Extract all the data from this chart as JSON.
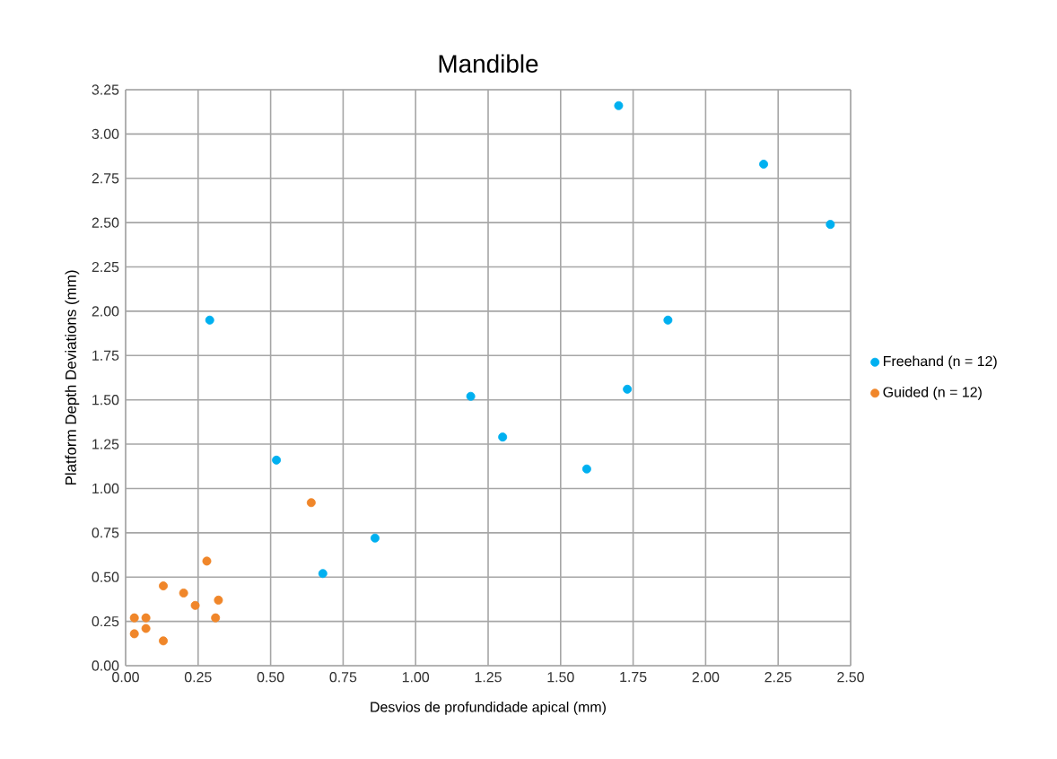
{
  "chart_data": {
    "type": "scatter",
    "title": "Mandible",
    "xlabel": "Desvios de profundidade apical (mm)",
    "ylabel": "Platform Depth Deviations (mm)",
    "xlim": [
      0,
      2.5
    ],
    "ylim": [
      0,
      3.25
    ],
    "xticks": [
      {
        "value": 0,
        "label": "0.00"
      },
      {
        "value": 0.25,
        "label": "0.25"
      },
      {
        "value": 0.5,
        "label": "0.50"
      },
      {
        "value": 0.75,
        "label": "0.75"
      },
      {
        "value": 1,
        "label": "1.00"
      },
      {
        "value": 1.25,
        "label": "1.25"
      },
      {
        "value": 1.5,
        "label": "1.50"
      },
      {
        "value": 1.75,
        "label": "1.75"
      },
      {
        "value": 2,
        "label": "2.00"
      },
      {
        "value": 2.25,
        "label": "2.25"
      },
      {
        "value": 2.5,
        "label": "2.50"
      }
    ],
    "yticks": [
      {
        "value": 0,
        "label": "0.00"
      },
      {
        "value": 0.25,
        "label": "0.25"
      },
      {
        "value": 0.5,
        "label": "0.50"
      },
      {
        "value": 0.75,
        "label": "0.75"
      },
      {
        "value": 1,
        "label": "1.00"
      },
      {
        "value": 1.25,
        "label": "1.25"
      },
      {
        "value": 1.5,
        "label": "1.50"
      },
      {
        "value": 1.75,
        "label": "1.75"
      },
      {
        "value": 2,
        "label": "2.00"
      },
      {
        "value": 2.25,
        "label": "2.25"
      },
      {
        "value": 2.5,
        "label": "2.50"
      },
      {
        "value": 2.75,
        "label": "2.75"
      },
      {
        "value": 3,
        "label": "3.00"
      },
      {
        "value": 3.25,
        "label": "3.25"
      }
    ],
    "grid": true,
    "legend": "right",
    "marker": "circle",
    "series": [
      {
        "name": "Freehand (n = 12)",
        "color": "#00b0f0",
        "x": [
          0.29,
          0.52,
          0.68,
          0.86,
          1.19,
          1.3,
          1.59,
          1.7,
          1.73,
          1.87,
          2.2,
          2.43
        ],
        "values": [
          1.95,
          1.16,
          0.52,
          0.72,
          1.52,
          1.29,
          1.11,
          3.16,
          1.56,
          1.95,
          2.83,
          2.49
        ]
      },
      {
        "name": "Guided (n = 12)",
        "color": "#f0862a",
        "x": [
          0.03,
          0.07,
          0.03,
          0.07,
          0.13,
          0.13,
          0.2,
          0.24,
          0.28,
          0.31,
          0.32,
          0.64
        ],
        "values": [
          0.27,
          0.27,
          0.18,
          0.21,
          0.14,
          0.45,
          0.41,
          0.34,
          0.59,
          0.27,
          0.37,
          0.92
        ]
      }
    ]
  }
}
